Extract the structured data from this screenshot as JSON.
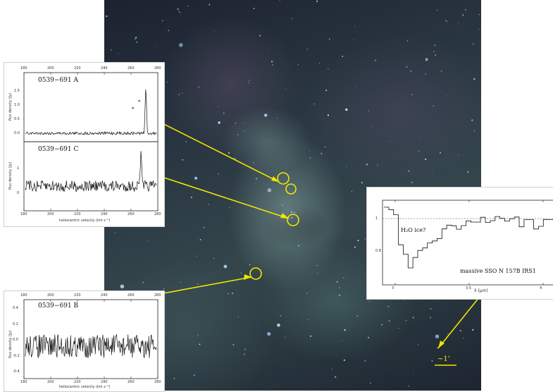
{
  "image": {
    "description_free": true,
    "background_colors": {
      "sky": "#1c2230",
      "gas_teal": "#8cafaa",
      "gas_magenta": "#6e5a78"
    },
    "annotation_color": "#f2e600"
  },
  "panel_a": {
    "source_a_label": "0539−691 A",
    "source_c_label": "0539−691 C",
    "ylabel_top": "flux density (Jy)",
    "ylabel_bottom": "flux density (Jy)",
    "xlabel": "heliocentric velocity (km s⁻¹)",
    "top_ticks": [
      "180",
      "200",
      "220",
      "240",
      "260",
      "280"
    ],
    "bottom_ticks": [
      "180",
      "200",
      "220",
      "240",
      "260",
      "280"
    ],
    "y_ticks_a": [
      "1.5",
      "1.0",
      "0.5",
      "0.0"
    ],
    "y_ticks_c": [
      "1",
      "0"
    ]
  },
  "panel_b": {
    "source_b_label": "0539−691 B",
    "ylabel": "flux density (Jy)",
    "xlabel": "heliocentric velocity (km s⁻¹)",
    "top_ticks": [
      "180",
      "200",
      "220",
      "240",
      "260",
      "280"
    ],
    "bottom_ticks": [
      "180",
      "200",
      "220",
      "240",
      "260",
      "280"
    ],
    "y_ticks": [
      "0.4",
      "0.2",
      "0.0",
      "-0.2",
      "-0.4"
    ]
  },
  "panel_ir": {
    "feature_label": "H₂O ice?",
    "source_label": "massive SSO N 157B IRS1",
    "xlabel": "λ (μm)",
    "x_ticks": [
      "3",
      "3.5",
      "4"
    ],
    "y_ticks": [
      "1",
      "0.8"
    ]
  },
  "scale_bar_label": "~1'"
}
